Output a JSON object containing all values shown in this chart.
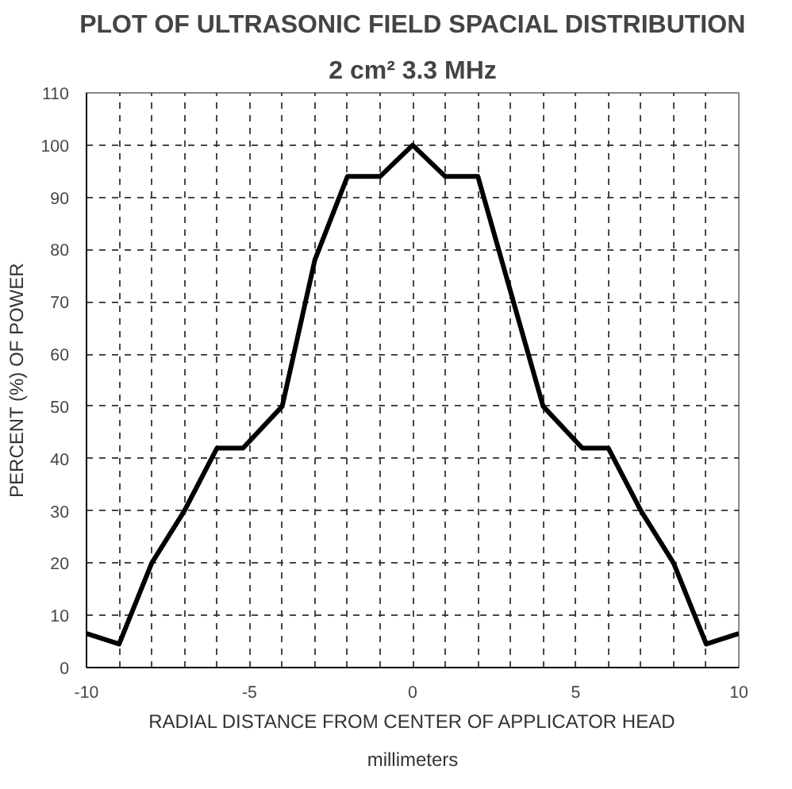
{
  "chart_data": {
    "type": "line",
    "title": "PLOT OF ULTRASONIC FIELD SPACIAL DISTRIBUTION",
    "subtitle": "2 cm² 3.3 MHz",
    "xlabel": "RADIAL DISTANCE FROM CENTER OF APPLICATOR HEAD",
    "annotations": [
      "millimeters"
    ],
    "ylabel": "PERCENT (%) OF POWER",
    "series": [
      {
        "color": "#000000",
        "x": [
          -10,
          -9,
          -8,
          -7,
          -6,
          -5.2,
          -4,
          -3,
          -2,
          -1,
          0,
          1,
          2,
          3,
          4,
          5.2,
          6,
          7,
          8,
          9,
          10
        ],
        "values": [
          6.5,
          4.5,
          20,
          30,
          42,
          42,
          50,
          78,
          94,
          94,
          100,
          94,
          94,
          72,
          50,
          42,
          42,
          30,
          20,
          4.5,
          6.5
        ]
      }
    ],
    "xlim": [
      -10,
      10
    ],
    "ylim": [
      0,
      110
    ],
    "xticks": [
      -10,
      {
        "value": -9,
        "label": null
      },
      {
        "value": -8,
        "label": null
      },
      {
        "value": -7,
        "label": null
      },
      {
        "value": -6,
        "label": null
      },
      -5,
      {
        "value": -4,
        "label": null
      },
      {
        "value": -3,
        "label": null
      },
      {
        "value": -2,
        "label": null
      },
      {
        "value": -1,
        "label": null
      },
      0,
      {
        "value": 1,
        "label": null
      },
      {
        "value": 2,
        "label": null
      },
      {
        "value": 3,
        "label": null
      },
      {
        "value": 4,
        "label": null
      },
      5,
      {
        "value": 6,
        "label": null
      },
      {
        "value": 7,
        "label": null
      },
      {
        "value": 8,
        "label": null
      },
      {
        "value": 9,
        "label": null
      },
      10
    ],
    "yticks": [
      0,
      10,
      20,
      30,
      40,
      50,
      60,
      70,
      80,
      90,
      100,
      110
    ],
    "grid": true,
    "line_style": "solid"
  }
}
